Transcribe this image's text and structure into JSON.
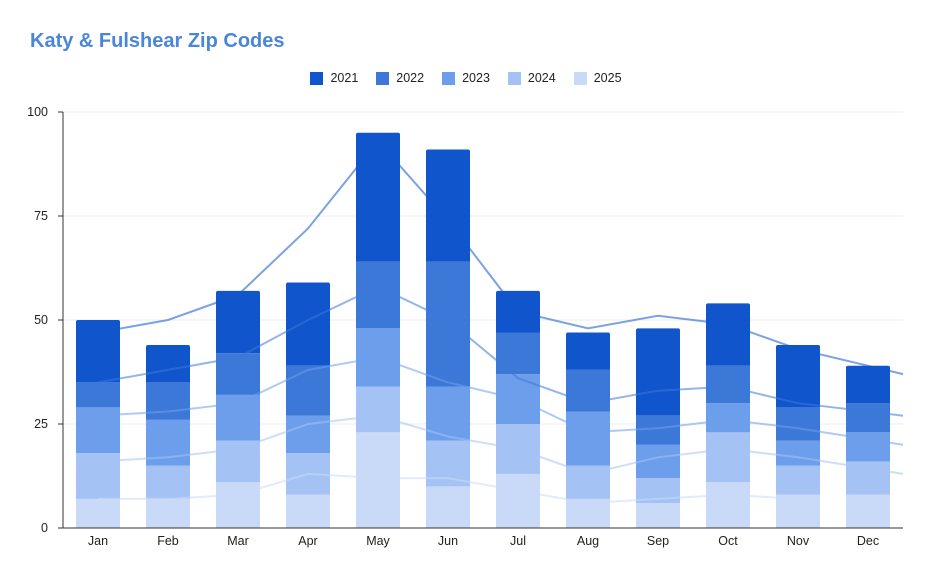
{
  "chart_data": {
    "type": "bar",
    "stacked": true,
    "title": "Katy & Fulshear Zip Codes",
    "categories": [
      "Jan",
      "Feb",
      "Mar",
      "Apr",
      "May",
      "Jun",
      "Jul",
      "Aug",
      "Sep",
      "Oct",
      "Nov",
      "Dec"
    ],
    "ylim": [
      0,
      100
    ],
    "yticks": [
      0,
      25,
      50,
      75,
      100
    ],
    "legend_position": "top-center",
    "series": [
      {
        "name": "2025",
        "color": "#c9daf8",
        "values": [
          7,
          7,
          11,
          8,
          23,
          10,
          13,
          7,
          6,
          11,
          8,
          8
        ]
      },
      {
        "name": "2024",
        "color": "#a4c2f4",
        "values": [
          11,
          8,
          10,
          10,
          11,
          11,
          12,
          8,
          6,
          12,
          7,
          8
        ]
      },
      {
        "name": "2023",
        "color": "#6d9eeb",
        "values": [
          11,
          11,
          11,
          9,
          14,
          13,
          12,
          13,
          8,
          7,
          6,
          7
        ]
      },
      {
        "name": "2022",
        "color": "#3c78d8",
        "values": [
          6,
          9,
          10,
          12,
          16,
          30,
          10,
          10,
          7,
          9,
          8,
          7
        ]
      },
      {
        "name": "2021",
        "color": "#1155cc",
        "values": [
          15,
          9,
          15,
          20,
          31,
          27,
          10,
          9,
          21,
          15,
          15,
          9
        ]
      }
    ],
    "trendlines": [
      {
        "series": "2025",
        "values": [
          null,
          7,
          7,
          8,
          13,
          12,
          12,
          9,
          6,
          7,
          8,
          7,
          null
        ]
      },
      {
        "series": "2024",
        "values": [
          null,
          16,
          17,
          19,
          25,
          27,
          22,
          19,
          13,
          17,
          19,
          17,
          13
        ]
      },
      {
        "series": "2023",
        "values": [
          null,
          27,
          28,
          30,
          38,
          41,
          35,
          31,
          23,
          24,
          26,
          24,
          20
        ]
      },
      {
        "series": "2022",
        "values": [
          null,
          35,
          38,
          41,
          50,
          58,
          50,
          36,
          30,
          33,
          34,
          30,
          27
        ]
      },
      {
        "series": "2021",
        "values": [
          null,
          47,
          50,
          56,
          72,
          93,
          74,
          52,
          48,
          51,
          49,
          43,
          37
        ]
      }
    ]
  }
}
